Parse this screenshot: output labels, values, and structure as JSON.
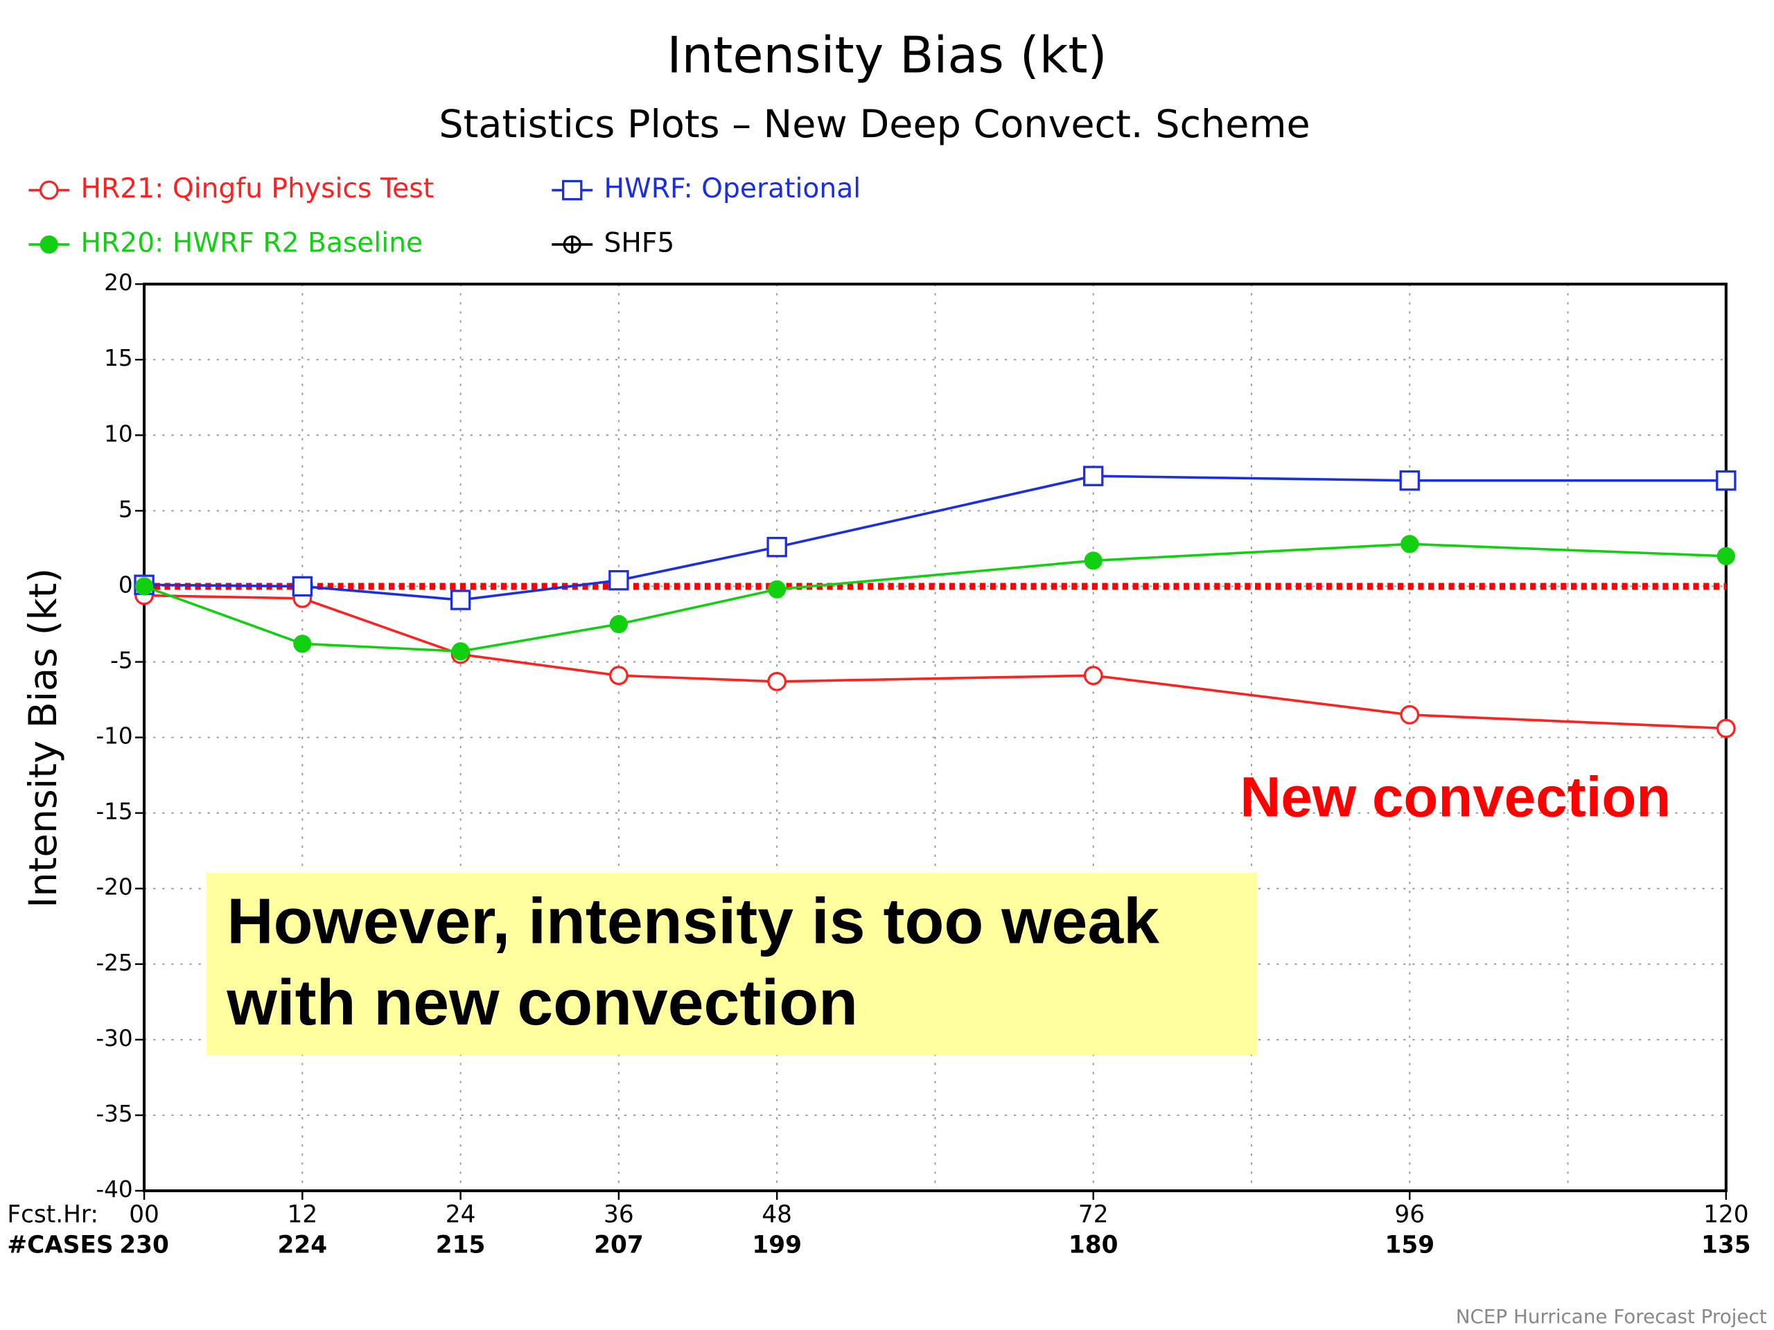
{
  "chart_data": {
    "type": "line",
    "title": "Intensity Bias (kt)",
    "subtitle": "Statistics Plots – New Deep Convect. Scheme",
    "y_label": "Intensity Bias (kt)",
    "x": [
      0,
      12,
      24,
      36,
      48,
      72,
      96,
      120
    ],
    "x_row_label": "Fcst.Hr:",
    "cases_label": "#CASES",
    "cases": [
      230,
      224,
      215,
      207,
      199,
      180,
      159,
      135
    ],
    "xlim": [
      0,
      120
    ],
    "xticks": [
      {
        "value": 0,
        "label": "00"
      },
      12,
      24,
      36,
      48,
      72,
      96,
      120
    ],
    "xgrid": [
      60,
      84,
      108
    ],
    "ylim": [
      -40,
      20
    ],
    "yticks": [
      -40,
      -35,
      -30,
      -25,
      -20,
      -15,
      -10,
      -5,
      0,
      5,
      10,
      15,
      20
    ],
    "grid": true,
    "reference_line": {
      "value": 0,
      "color": "#ff0000"
    },
    "series": [
      {
        "name": "HR21: Qingfu Physics Test",
        "color": "#ff2020",
        "marker": "open-circle",
        "values": [
          -0.6,
          -0.8,
          -4.5,
          -5.9,
          -6.3,
          -5.9,
          -8.5,
          -9.4
        ]
      },
      {
        "name": "HWRF: Operational",
        "color": "#1a2ee6",
        "marker": "open-square",
        "values": [
          0.1,
          0,
          -0.9,
          0.4,
          2.6,
          7.3,
          7.0,
          7.0
        ]
      },
      {
        "name": "HR20: HWRF R2 Baseline",
        "color": "#10d010",
        "marker": "filled-circle",
        "values": [
          0,
          -3.8,
          -4.3,
          -2.5,
          -0.2,
          1.7,
          2.8,
          2.0
        ]
      },
      {
        "name": "SHF5",
        "color": "#000000",
        "marker": "cross-circle",
        "values": [
          null,
          null,
          null,
          null,
          null,
          null,
          null,
          null
        ]
      }
    ],
    "annotations": [
      {
        "text": "New convection",
        "color": "#ff0000"
      },
      {
        "lines": [
          "However, intensity is too weak",
          "with new convection"
        ],
        "background": "#ffffa0"
      }
    ],
    "footer": "NCEP Hurricane Forecast Project"
  }
}
